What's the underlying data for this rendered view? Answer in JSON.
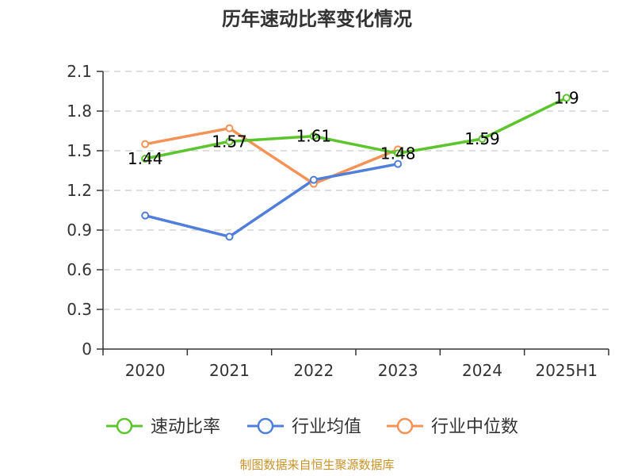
{
  "chart_data": {
    "type": "line",
    "title": "历年速动比率变化情况",
    "categories": [
      "2020",
      "2021",
      "2022",
      "2023",
      "2024",
      "2025H1"
    ],
    "y_ticks": [
      "0",
      "0.3",
      "0.6",
      "0.9",
      "1.2",
      "1.5",
      "1.8",
      "2.1"
    ],
    "ylim": [
      0,
      2.1
    ],
    "grid": true,
    "legend_position": "bottom",
    "series": [
      {
        "name": "速动比率",
        "color": "#5cc52d",
        "values": [
          1.44,
          1.57,
          1.61,
          1.48,
          1.59,
          1.9
        ],
        "labels": [
          "1.44",
          "1.57",
          "1.61",
          "1.48",
          "1.59",
          "1.9"
        ]
      },
      {
        "name": "行业均值",
        "color": "#4f7fdb",
        "values": [
          1.01,
          0.85,
          1.28,
          1.4,
          null,
          null
        ]
      },
      {
        "name": "行业中位数",
        "color": "#f59256",
        "values": [
          1.55,
          1.67,
          1.25,
          1.51,
          null,
          null
        ]
      }
    ]
  },
  "footer": {
    "credit": "制图数据来自恒生聚源数据库"
  }
}
